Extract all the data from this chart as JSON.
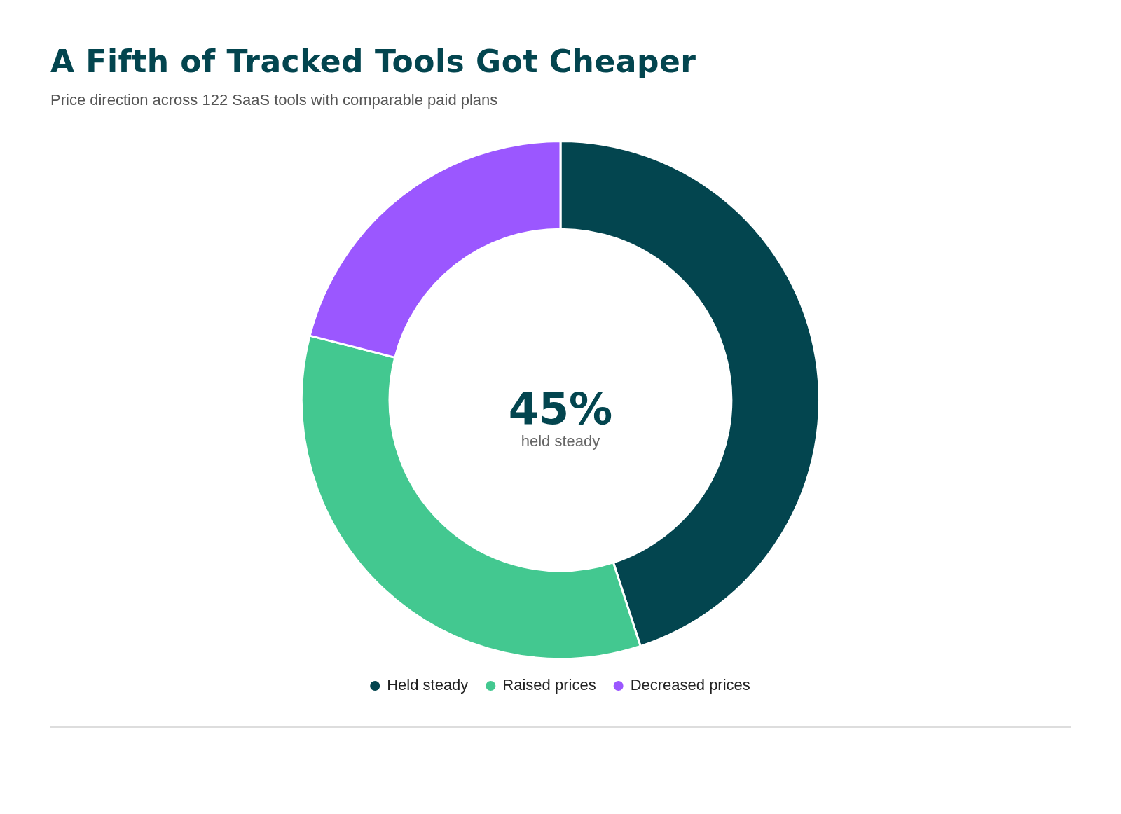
{
  "chart_data": {
    "type": "donut",
    "title": "A Fifth of Tracked Tools Got Cheaper",
    "subtitle": "Price direction across 122 SaaS tools with comparable paid plans",
    "categories": [
      "Held steady",
      "Raised prices",
      "Decreased prices"
    ],
    "values": [
      45,
      34,
      21
    ],
    "colors": [
      "#03454f",
      "#43c890",
      "#9b57ff"
    ],
    "annotations": [
      "45%",
      "held steady"
    ],
    "legend": "bottom"
  }
}
